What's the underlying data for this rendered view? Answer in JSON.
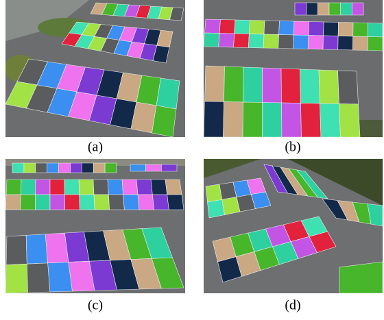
{
  "captions": [
    "(a)",
    "(b)",
    "(c)",
    "(d)"
  ]
}
